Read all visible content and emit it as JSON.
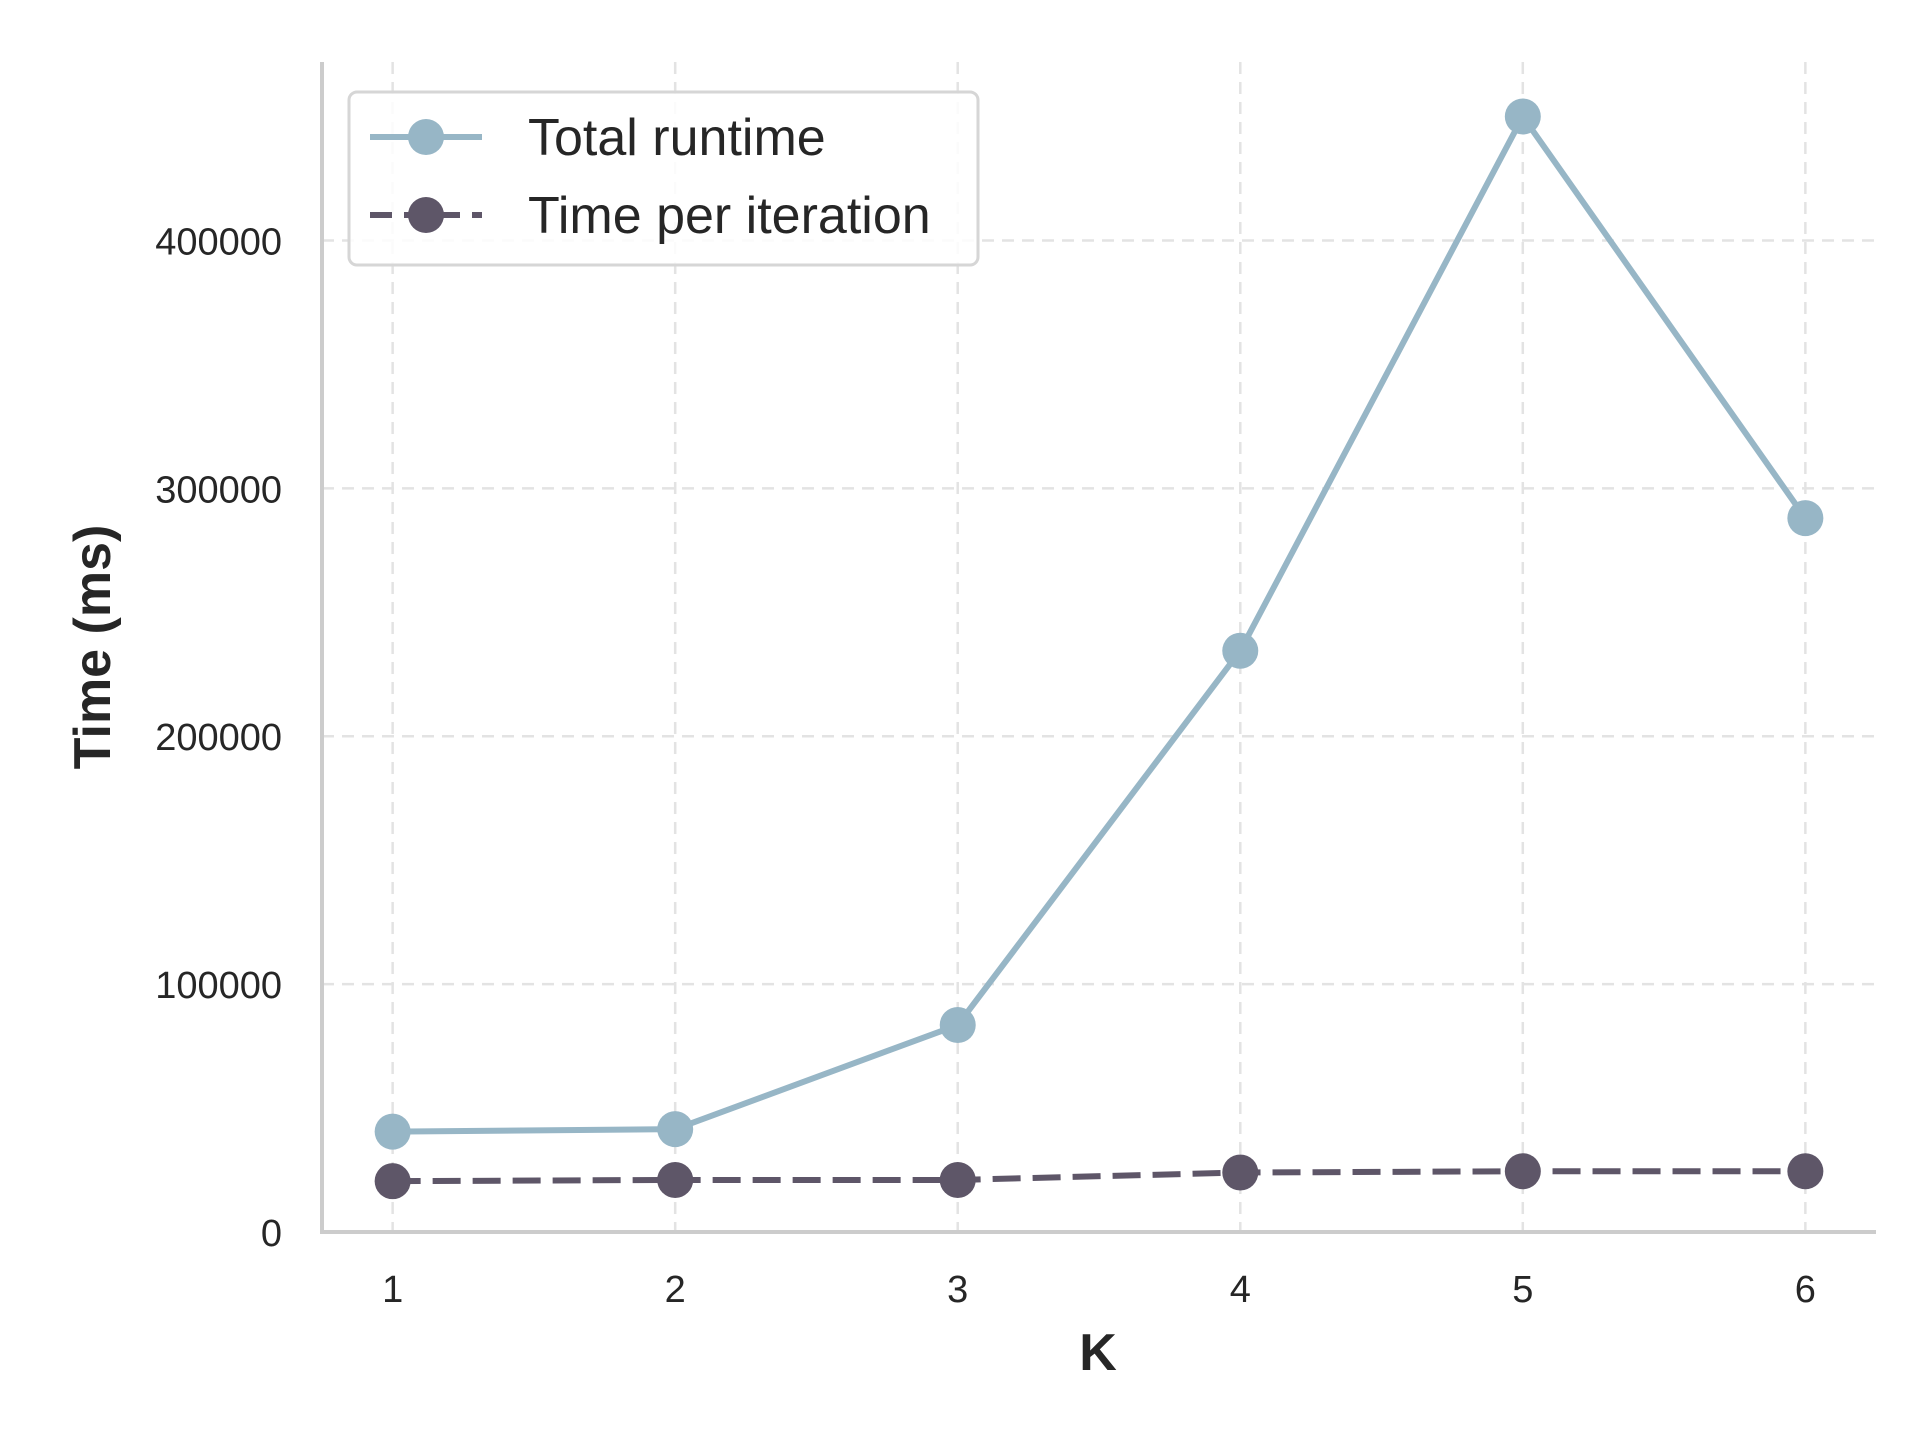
{
  "chart_data": {
    "type": "line",
    "title": "",
    "xlabel": "K",
    "ylabel": "Time (ms)",
    "x": [
      1,
      2,
      3,
      4,
      5,
      6
    ],
    "xlim": [
      0.75,
      6.25
    ],
    "ylim": [
      0,
      472000
    ],
    "xticks": [
      1,
      2,
      3,
      4,
      5,
      6
    ],
    "yticks": [
      0,
      100000,
      200000,
      300000,
      400000
    ],
    "xtick_labels": [
      "1",
      "2",
      "3",
      "4",
      "5",
      "6"
    ],
    "ytick_labels": [
      "0",
      "100000",
      "200000",
      "300000",
      "400000"
    ],
    "grid": true,
    "legend_position": "top-left",
    "series": [
      {
        "name": "Total runtime",
        "values": [
          40500,
          41500,
          83500,
          234500,
          450000,
          288000
        ],
        "color": "#97b6c6",
        "line_style": "solid",
        "marker": "circle"
      },
      {
        "name": "Time per iteration",
        "values": [
          20500,
          21000,
          21000,
          24000,
          24500,
          24500
        ],
        "color": "#5e5668",
        "line_style": "dashed",
        "marker": "circle"
      }
    ]
  }
}
